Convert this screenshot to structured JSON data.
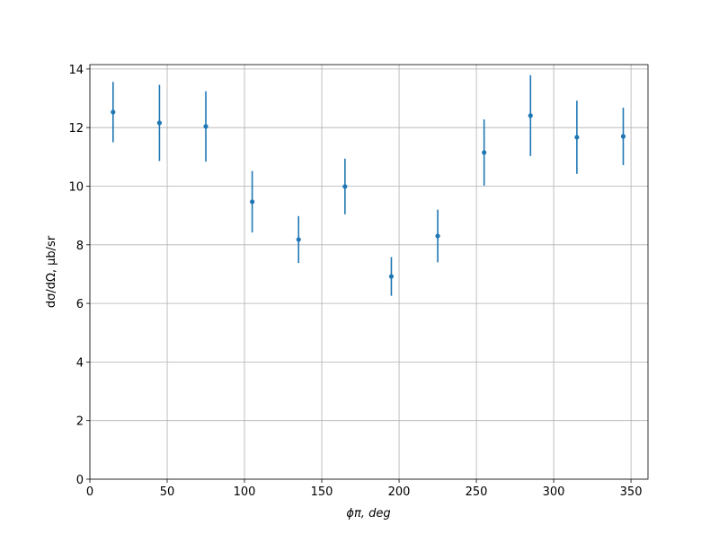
{
  "chart_data": {
    "type": "errorbar",
    "xlabel": "ϕπ, deg",
    "ylabel": "dσ/dΩ, μb/sr",
    "x": [
      15,
      45,
      75,
      105,
      135,
      165,
      195,
      225,
      255,
      285,
      315,
      345
    ],
    "values": [
      12.53,
      12.16,
      12.04,
      9.47,
      8.18,
      9.99,
      6.92,
      8.3,
      11.15,
      12.41,
      11.67,
      11.7
    ],
    "errors": [
      1.03,
      1.3,
      1.2,
      1.05,
      0.8,
      0.95,
      0.66,
      0.9,
      1.13,
      1.38,
      1.25,
      0.98
    ],
    "color": "#1f77b4",
    "xlim": [
      0,
      361
    ],
    "ylim": [
      0,
      14.15
    ],
    "xticks": [
      0,
      50,
      100,
      150,
      200,
      250,
      300,
      350
    ],
    "yticks": [
      0,
      2,
      4,
      6,
      8,
      10,
      12,
      14
    ],
    "grid": true
  }
}
